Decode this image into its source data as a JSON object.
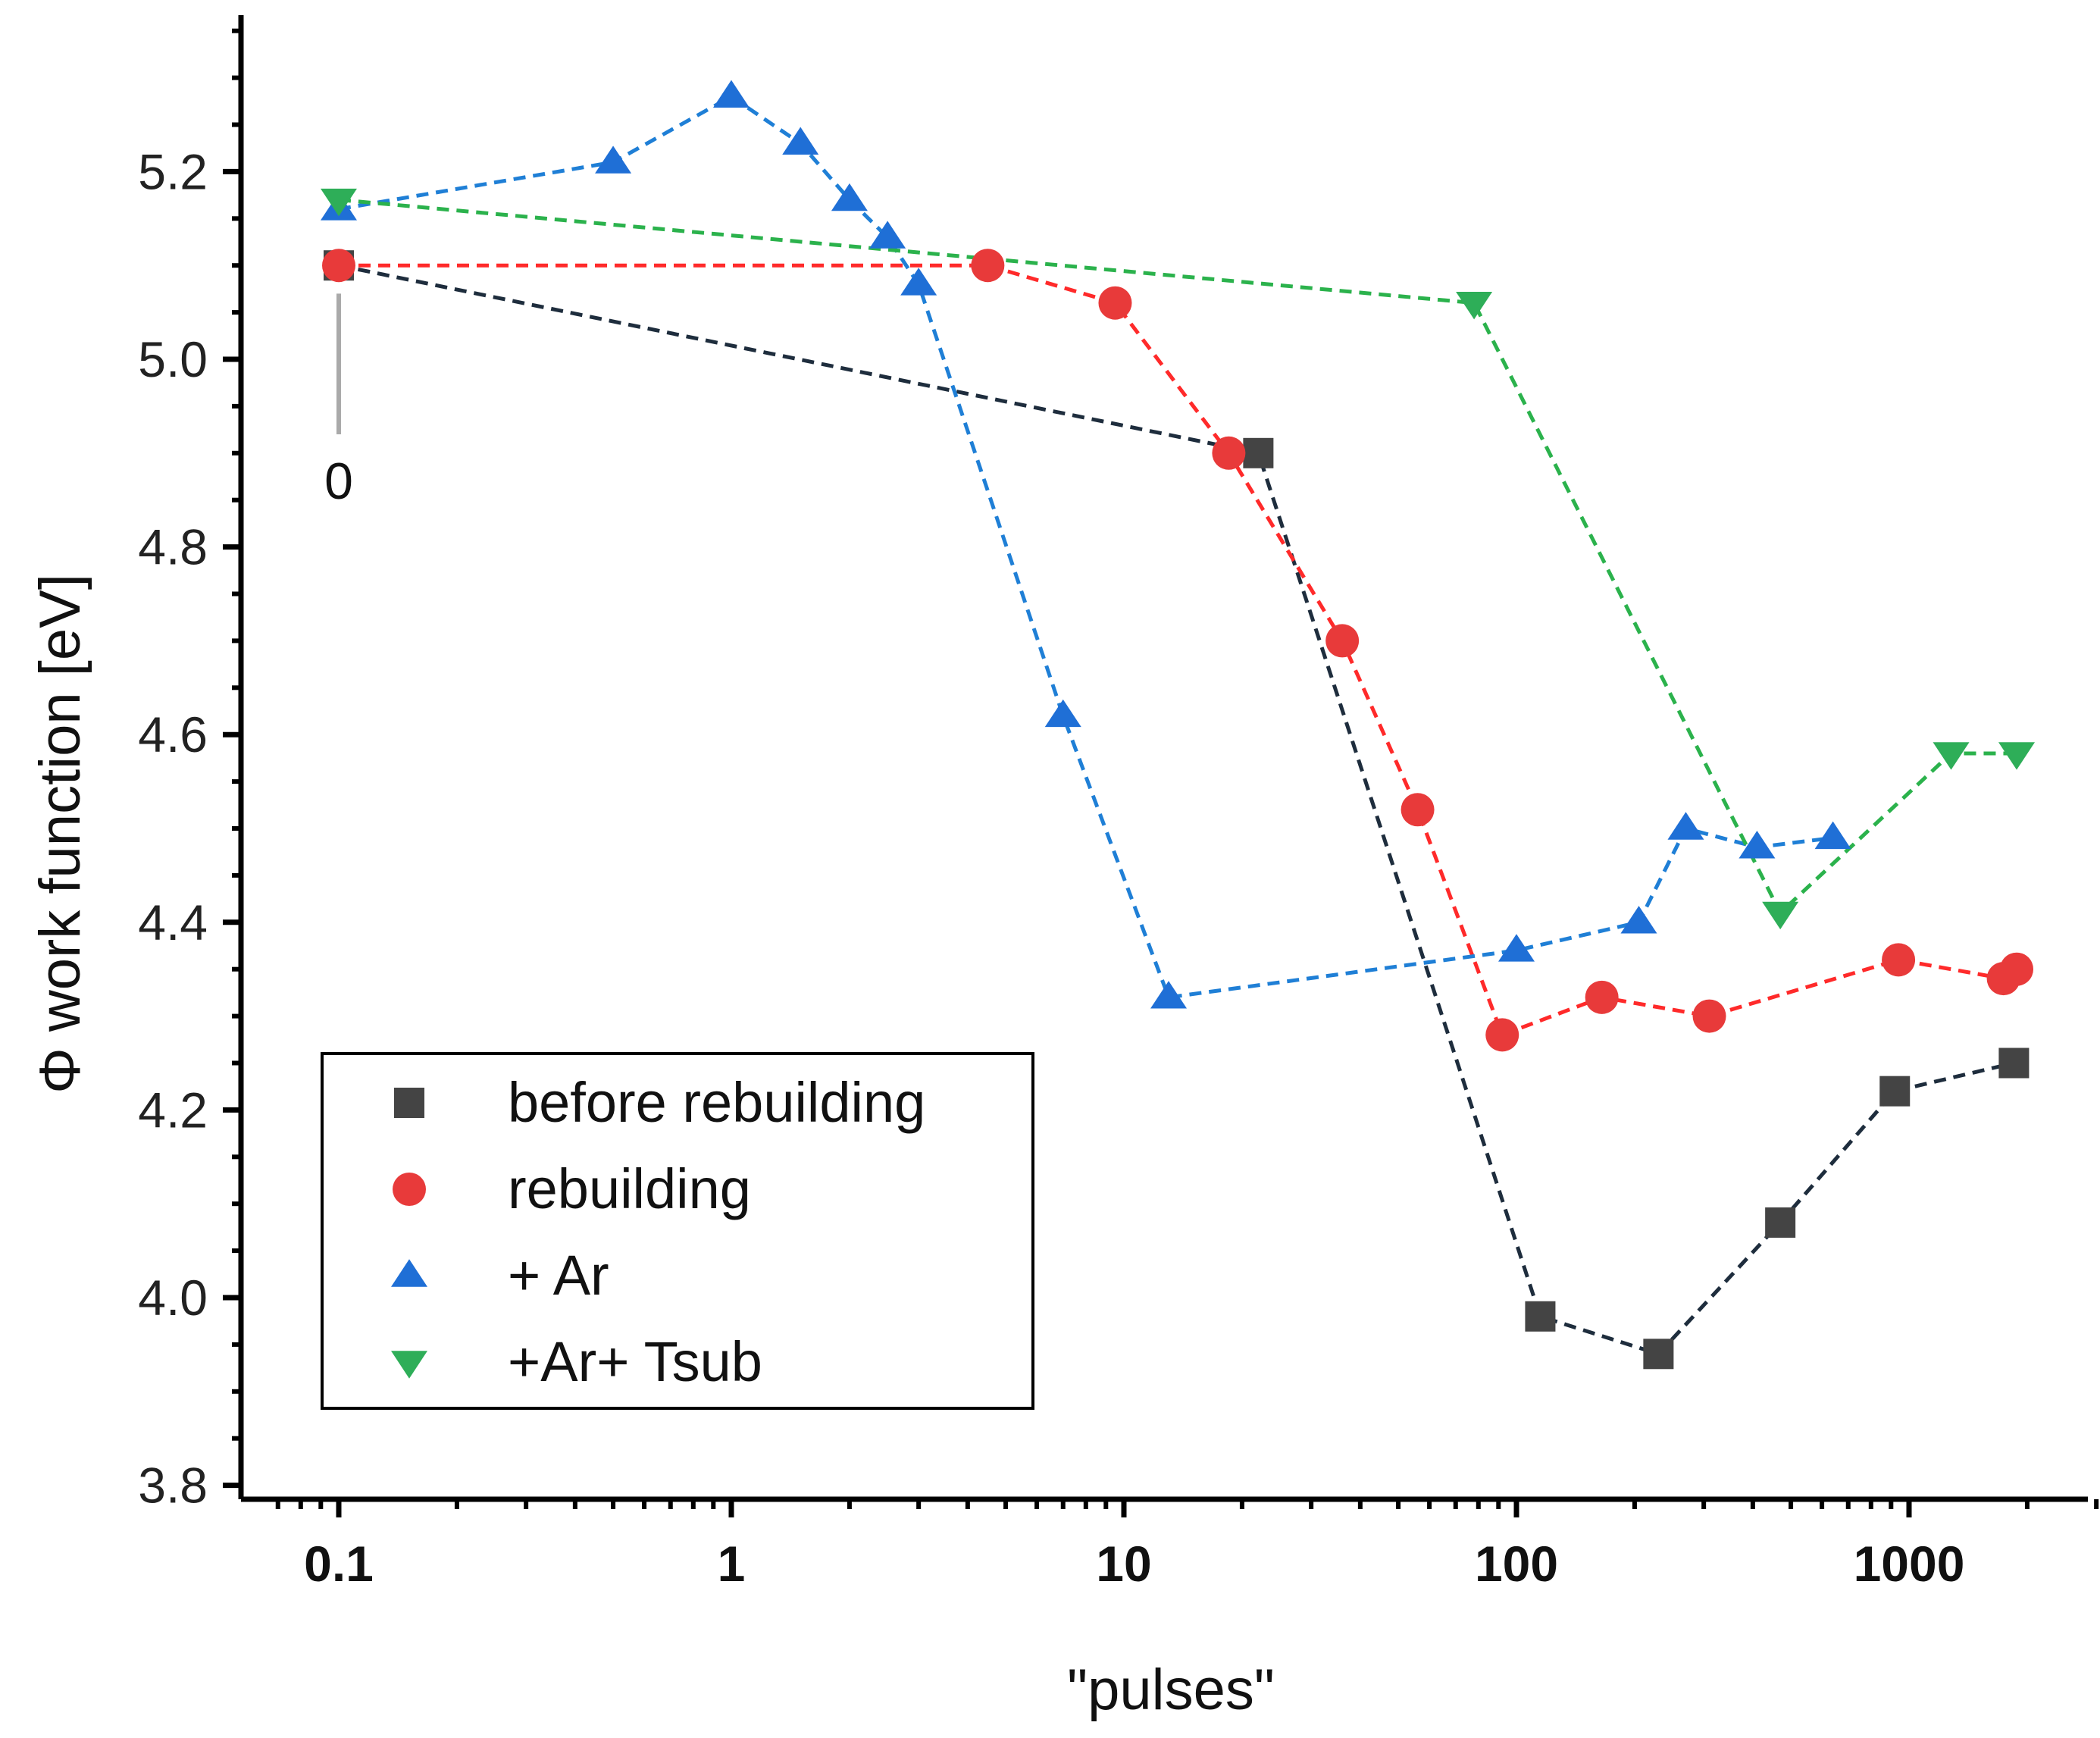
{
  "chart_data": {
    "type": "line",
    "title": "",
    "xlabel": "\"pulses\"",
    "ylabel": "Φ work function [eV]",
    "xscale": "log",
    "xlim": [
      0.07,
      3000
    ],
    "ylim": [
      3.76,
      5.36
    ],
    "x_ticks": [
      0.1,
      1,
      10,
      100,
      1000
    ],
    "x_tick_labels": [
      "0.1",
      "1",
      "10",
      "100",
      "1000"
    ],
    "y_ticks": [
      3.8,
      4.0,
      4.2,
      4.4,
      4.6,
      4.8,
      5.0,
      5.2
    ],
    "y_tick_labels": [
      "3.8",
      "4.0",
      "4.2",
      "4.4",
      "4.6",
      "4.8",
      "5.0",
      "5.2"
    ],
    "grid": false,
    "legend_position": "bottom-left",
    "annotations": [
      {
        "text": "0",
        "x": 0.1,
        "y": 4.89
      }
    ],
    "series": [
      {
        "name": "before rebuilding",
        "marker": "square",
        "color": "#444444",
        "line_color": "#1e2d3d",
        "x": [
          0.1,
          22,
          115,
          230,
          470,
          920,
          1850
        ],
        "y": [
          5.1,
          4.9,
          3.98,
          3.94,
          4.08,
          4.22,
          4.25
        ]
      },
      {
        "name": "rebuilding",
        "marker": "circle",
        "color": "#e83a3a",
        "line_color": "#ff2a2a",
        "x": [
          0.1,
          4.5,
          9.5,
          18.5,
          36,
          56,
          92,
          165,
          310,
          940,
          1740,
          1880
        ],
        "y": [
          5.1,
          5.1,
          5.06,
          4.9,
          4.7,
          4.52,
          4.28,
          4.32,
          4.3,
          4.36,
          4.34,
          4.35
        ]
      },
      {
        "name": "+ Ar",
        "marker": "triangle-up",
        "color": "#1f6fd6",
        "line_color": "#1f7fd6",
        "x": [
          0.1,
          0.5,
          1,
          1.5,
          2,
          2.5,
          3,
          7,
          13,
          100,
          205,
          270,
          410,
          640
        ],
        "y": [
          5.16,
          5.21,
          5.28,
          5.23,
          5.17,
          5.13,
          5.08,
          4.62,
          4.32,
          4.37,
          4.4,
          4.5,
          4.48,
          4.49
        ]
      },
      {
        "name": "+Ar+ Tsub",
        "marker": "triangle-down",
        "color": "#2eae58",
        "line_color": "#2bb24c",
        "x": [
          0.1,
          78,
          470,
          1280,
          1880
        ],
        "y": [
          5.17,
          5.06,
          4.41,
          4.58,
          4.58
        ]
      }
    ]
  }
}
